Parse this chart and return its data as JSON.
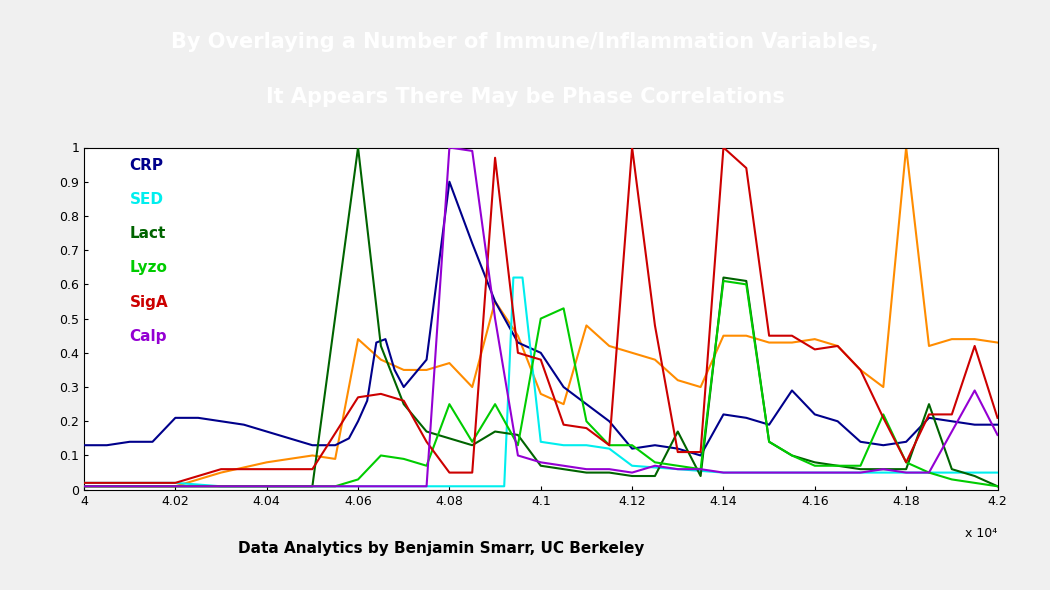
{
  "title_line1": "By Overlaying a Number of Immune/Inflammation Variables,",
  "title_line2": "It Appears There May be Phase Correlations",
  "title_bg_color": "#1a3a9c",
  "title_text_color": "#ffffff",
  "footer_text": "Data Analytics by Benjamin Smarr, UC Berkeley",
  "bg_color": "#f0f0f0",
  "plot_bg_color": "#ffffff",
  "xlabel_sci": "x 10⁴",
  "xmin": 40000,
  "xmax": 42000,
  "ymin": 0,
  "ymax": 1.0,
  "yticks": [
    0,
    0.1,
    0.2,
    0.3,
    0.4,
    0.5,
    0.6,
    0.7,
    0.8,
    0.9,
    1
  ],
  "ytick_labels": [
    "0",
    "0.1",
    "0.2",
    "0.3",
    "0.4",
    "0.5",
    "0.6",
    "0.7",
    "0.8",
    "0.9",
    "1"
  ],
  "xtick_labels": [
    "4",
    "4.02",
    "4.04",
    "4.06",
    "4.08",
    "4.1",
    "4.12",
    "4.14",
    "4.16",
    "4.18",
    "4.2"
  ],
  "xtick_values": [
    40000,
    40200,
    40400,
    40600,
    40800,
    41000,
    41200,
    41400,
    41600,
    41800,
    42000
  ],
  "legend_labels": [
    "CRP",
    "SED",
    "Lact",
    "Lyzo",
    "SigA",
    "Calp"
  ],
  "legend_colors": [
    "#00008B",
    "#00EEEE",
    "#006400",
    "#00CC00",
    "#CC0000",
    "#9400D3"
  ],
  "series": {
    "CRP": {
      "color": "#00008B",
      "x": [
        40000,
        40050,
        40100,
        40150,
        40200,
        40250,
        40300,
        40350,
        40400,
        40450,
        40500,
        40550,
        40580,
        40600,
        40620,
        40640,
        40660,
        40680,
        40700,
        40750,
        40800,
        40850,
        40900,
        40950,
        41000,
        41050,
        41100,
        41150,
        41200,
        41250,
        41300,
        41350,
        41400,
        41450,
        41500,
        41550,
        41600,
        41650,
        41700,
        41750,
        41800,
        41850,
        41900,
        41950,
        42000
      ],
      "y": [
        0.13,
        0.13,
        0.14,
        0.14,
        0.21,
        0.21,
        0.2,
        0.19,
        0.17,
        0.15,
        0.13,
        0.13,
        0.15,
        0.2,
        0.26,
        0.43,
        0.44,
        0.35,
        0.3,
        0.38,
        0.9,
        0.72,
        0.55,
        0.43,
        0.4,
        0.3,
        0.25,
        0.2,
        0.12,
        0.13,
        0.12,
        0.1,
        0.22,
        0.21,
        0.19,
        0.29,
        0.22,
        0.2,
        0.14,
        0.13,
        0.14,
        0.21,
        0.2,
        0.19,
        0.19
      ]
    },
    "SED": {
      "color": "#00EEEE",
      "x": [
        40000,
        40100,
        40200,
        40300,
        40400,
        40500,
        40600,
        40700,
        40800,
        40850,
        40880,
        40900,
        40920,
        40940,
        40960,
        41000,
        41050,
        41100,
        41150,
        41200,
        41300,
        41400,
        41500,
        41600,
        41700,
        41800,
        41900,
        42000
      ],
      "y": [
        0.02,
        0.02,
        0.02,
        0.01,
        0.01,
        0.01,
        0.01,
        0.01,
        0.01,
        0.01,
        0.01,
        0.01,
        0.01,
        0.62,
        0.62,
        0.14,
        0.13,
        0.13,
        0.12,
        0.07,
        0.06,
        0.05,
        0.05,
        0.05,
        0.05,
        0.05,
        0.05,
        0.05
      ]
    },
    "Lact": {
      "color": "#006400",
      "x": [
        40000,
        40100,
        40200,
        40300,
        40400,
        40500,
        40600,
        40650,
        40700,
        40750,
        40800,
        40850,
        40900,
        40950,
        41000,
        41050,
        41100,
        41150,
        41200,
        41250,
        41300,
        41350,
        41400,
        41450,
        41500,
        41550,
        41600,
        41650,
        41700,
        41750,
        41800,
        41850,
        41900,
        41950,
        42000
      ],
      "y": [
        0.01,
        0.01,
        0.01,
        0.01,
        0.01,
        0.01,
        1.0,
        0.42,
        0.25,
        0.17,
        0.15,
        0.13,
        0.17,
        0.16,
        0.07,
        0.06,
        0.05,
        0.05,
        0.04,
        0.04,
        0.17,
        0.04,
        0.62,
        0.61,
        0.14,
        0.1,
        0.08,
        0.07,
        0.06,
        0.06,
        0.06,
        0.25,
        0.06,
        0.04,
        0.01
      ]
    },
    "Lyzo": {
      "color": "#00CC00",
      "x": [
        40000,
        40100,
        40200,
        40300,
        40400,
        40500,
        40550,
        40600,
        40650,
        40700,
        40750,
        40800,
        40850,
        40900,
        40950,
        41000,
        41050,
        41100,
        41150,
        41200,
        41250,
        41300,
        41350,
        41400,
        41450,
        41500,
        41550,
        41600,
        41650,
        41700,
        41750,
        41800,
        41850,
        41900,
        41950,
        42000
      ],
      "y": [
        0.01,
        0.01,
        0.01,
        0.01,
        0.01,
        0.01,
        0.01,
        0.03,
        0.1,
        0.09,
        0.07,
        0.25,
        0.14,
        0.25,
        0.13,
        0.5,
        0.53,
        0.2,
        0.13,
        0.13,
        0.08,
        0.07,
        0.06,
        0.61,
        0.6,
        0.14,
        0.1,
        0.07,
        0.07,
        0.07,
        0.22,
        0.08,
        0.05,
        0.03,
        0.02,
        0.01
      ]
    },
    "SigA": {
      "color": "#CC0000",
      "x": [
        40000,
        40100,
        40200,
        40300,
        40400,
        40500,
        40600,
        40650,
        40700,
        40750,
        40800,
        40850,
        40900,
        40950,
        41000,
        41050,
        41100,
        41150,
        41200,
        41250,
        41300,
        41350,
        41400,
        41450,
        41500,
        41550,
        41600,
        41650,
        41700,
        41750,
        41800,
        41850,
        41900,
        41950,
        42000
      ],
      "y": [
        0.02,
        0.02,
        0.02,
        0.06,
        0.06,
        0.06,
        0.27,
        0.28,
        0.26,
        0.14,
        0.05,
        0.05,
        0.97,
        0.4,
        0.38,
        0.19,
        0.18,
        0.13,
        1.0,
        0.48,
        0.11,
        0.11,
        1.0,
        0.94,
        0.45,
        0.45,
        0.41,
        0.42,
        0.35,
        0.21,
        0.08,
        0.22,
        0.22,
        0.42,
        0.21
      ]
    },
    "Calp": {
      "color": "#9400D3",
      "x": [
        40000,
        40100,
        40200,
        40300,
        40400,
        40500,
        40600,
        40700,
        40750,
        40800,
        40850,
        40900,
        40950,
        41000,
        41050,
        41100,
        41150,
        41200,
        41250,
        41300,
        41350,
        41400,
        41450,
        41500,
        41550,
        41600,
        41650,
        41700,
        41750,
        41800,
        41850,
        41900,
        41950,
        42000
      ],
      "y": [
        0.01,
        0.01,
        0.01,
        0.01,
        0.01,
        0.01,
        0.01,
        0.01,
        0.01,
        1.0,
        0.99,
        0.5,
        0.1,
        0.08,
        0.07,
        0.06,
        0.06,
        0.05,
        0.07,
        0.06,
        0.06,
        0.05,
        0.05,
        0.05,
        0.05,
        0.05,
        0.05,
        0.05,
        0.06,
        0.05,
        0.05,
        0.17,
        0.29,
        0.16
      ]
    },
    "Orange": {
      "color": "#FF8C00",
      "x": [
        40000,
        40100,
        40200,
        40300,
        40400,
        40500,
        40550,
        40600,
        40650,
        40700,
        40750,
        40800,
        40850,
        40900,
        40950,
        41000,
        41050,
        41100,
        41150,
        41200,
        41250,
        41300,
        41350,
        41400,
        41450,
        41500,
        41550,
        41600,
        41650,
        41700,
        41750,
        41800,
        41850,
        41900,
        41950,
        42000
      ],
      "y": [
        0.01,
        0.01,
        0.01,
        0.05,
        0.08,
        0.1,
        0.09,
        0.44,
        0.38,
        0.35,
        0.35,
        0.37,
        0.3,
        0.55,
        0.45,
        0.28,
        0.25,
        0.48,
        0.42,
        0.4,
        0.38,
        0.32,
        0.3,
        0.45,
        0.45,
        0.43,
        0.43,
        0.44,
        0.42,
        0.35,
        0.3,
        1.0,
        0.42,
        0.44,
        0.44,
        0.43
      ]
    }
  }
}
